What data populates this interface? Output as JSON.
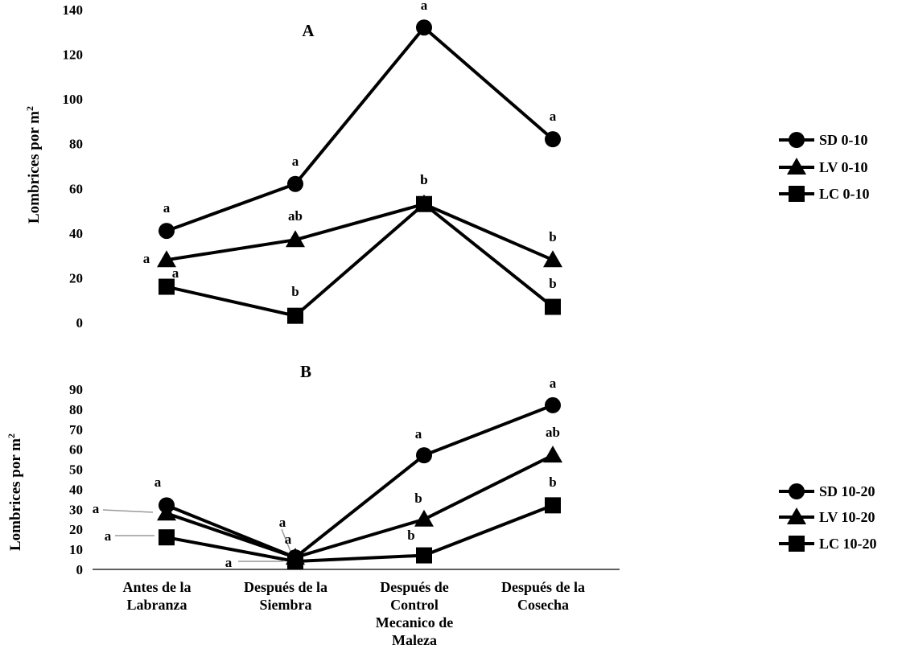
{
  "chart_data": [
    {
      "type": "line",
      "panel_label": "A",
      "ylabel": "Lombrices por m",
      "ylabel_sup": "2",
      "ylim": [
        0,
        140
      ],
      "yticks": [
        0,
        20,
        40,
        60,
        80,
        100,
        120,
        140
      ],
      "categories": [
        "Antes de la Labranza",
        "Después de la Siembra",
        "Después de Control Mecanico de Maleza",
        "Después de la Cosecha"
      ],
      "legend_position": "right",
      "series": [
        {
          "name": "SD 0-10",
          "marker": "circle",
          "values": [
            41,
            62,
            132,
            82
          ],
          "letters": [
            "a",
            "a",
            "a",
            "a"
          ]
        },
        {
          "name": "LV 0-10",
          "marker": "triangle",
          "values": [
            28,
            37,
            53,
            28
          ],
          "letters": [
            "a",
            "ab",
            "b",
            "b"
          ]
        },
        {
          "name": "LC 0-10",
          "marker": "square",
          "values": [
            16,
            3,
            53,
            7
          ],
          "letters": [
            "a",
            "b",
            "b",
            "b"
          ]
        }
      ]
    },
    {
      "type": "line",
      "panel_label": "B",
      "ylabel": "Lombrices por m",
      "ylabel_sup": "2",
      "ylim": [
        0,
        90
      ],
      "yticks": [
        0,
        10,
        20,
        30,
        40,
        50,
        60,
        70,
        80,
        90
      ],
      "categories": [
        "Antes de la Labranza",
        "Después de la Siembra",
        "Después de Control Mecanico de Maleza",
        "Después de la Cosecha"
      ],
      "category_lines": [
        [
          "Antes de la",
          "Labranza"
        ],
        [
          "Después de la",
          "Siembra"
        ],
        [
          "Después de",
          "Control",
          "Mecanico de",
          "Maleza"
        ],
        [
          "Después de la",
          "Cosecha"
        ]
      ],
      "legend_position": "right",
      "series": [
        {
          "name": "SD 10-20",
          "marker": "circle",
          "values": [
            32,
            6,
            57,
            82
          ],
          "letters": [
            "a",
            "a",
            "a",
            "a"
          ]
        },
        {
          "name": "LV 10-20",
          "marker": "triangle",
          "values": [
            28,
            6,
            25,
            57
          ],
          "letters": [
            "a",
            "a",
            "b",
            "ab"
          ]
        },
        {
          "name": "LC 10-20",
          "marker": "square",
          "values": [
            16,
            4,
            7,
            32
          ],
          "letters": [
            "a",
            "a",
            "b",
            "b"
          ]
        }
      ]
    }
  ]
}
